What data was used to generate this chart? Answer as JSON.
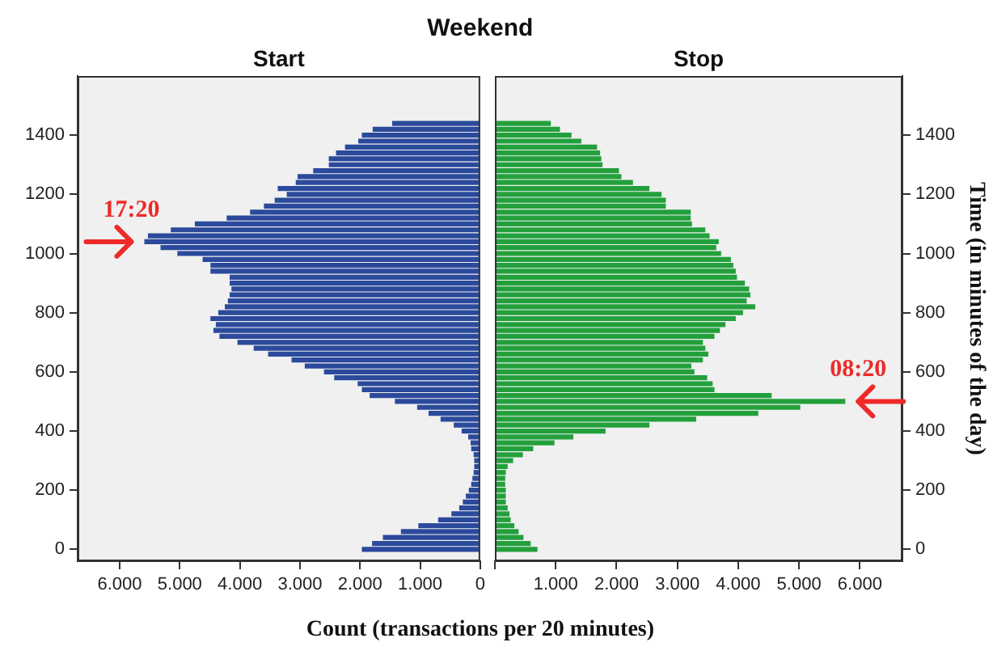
{
  "chart_data": [
    {
      "type": "bar",
      "orientation": "horizontal",
      "title": "Weekend",
      "subtitle": "Start",
      "xlabel": "Count (transactions per 20 minutes)",
      "x": [
        0,
        20,
        40,
        60,
        80,
        100,
        120,
        140,
        160,
        180,
        200,
        220,
        240,
        260,
        280,
        300,
        320,
        340,
        360,
        380,
        400,
        420,
        440,
        460,
        480,
        500,
        520,
        540,
        560,
        580,
        600,
        620,
        640,
        660,
        680,
        700,
        720,
        740,
        760,
        780,
        800,
        820,
        840,
        860,
        880,
        900,
        920,
        940,
        960,
        980,
        1000,
        1020,
        1040,
        1060,
        1080,
        1100,
        1120,
        1140,
        1160,
        1180,
        1200,
        1220,
        1240,
        1260,
        1280,
        1300,
        1320,
        1340,
        1360,
        1380,
        1400,
        1420,
        1440
      ],
      "series": [
        {
          "color": "#2b4a9c",
          "values": [
            1970,
            1800,
            1620,
            1320,
            1030,
            700,
            480,
            350,
            290,
            240,
            190,
            150,
            130,
            110,
            100,
            100,
            110,
            150,
            160,
            200,
            310,
            440,
            660,
            860,
            1050,
            1420,
            1840,
            1970,
            2040,
            2430,
            2600,
            2920,
            3140,
            3530,
            3770,
            4040,
            4340,
            4440,
            4400,
            4490,
            4360,
            4250,
            4200,
            4170,
            4140,
            4170,
            4170,
            4490,
            4490,
            4620,
            5040,
            5320,
            5590,
            5530,
            5150,
            4750,
            4220,
            3830,
            3600,
            3420,
            3220,
            3370,
            3070,
            3040,
            2780,
            2520,
            2520,
            2400,
            2250,
            2030,
            1970,
            1790,
            1465
          ]
        }
      ],
      "xlim": [
        6700,
        0
      ],
      "xticks": [
        {
          "value": 6000,
          "label": "6.000"
        },
        {
          "value": 5000,
          "label": "5.000"
        },
        {
          "value": 4000,
          "label": "4.000"
        },
        {
          "value": 3000,
          "label": "3.000"
        },
        {
          "value": 2000,
          "label": "2.000"
        },
        {
          "value": 1000,
          "label": "1.000"
        },
        0
      ],
      "ylim": [
        -40,
        1600
      ],
      "yticks": [
        0,
        200,
        400,
        600,
        800,
        1000,
        1200,
        1400
      ],
      "grid": false,
      "legend": false,
      "annotations": [
        {
          "text": "17:20",
          "x": 5590,
          "y": 1040
        }
      ]
    },
    {
      "type": "bar",
      "orientation": "horizontal",
      "subtitle": "Stop",
      "ylabel": "Time (in minutes of the day)",
      "x": [
        0,
        20,
        40,
        60,
        80,
        100,
        120,
        140,
        160,
        180,
        200,
        220,
        240,
        260,
        280,
        300,
        320,
        340,
        360,
        380,
        400,
        420,
        440,
        460,
        480,
        500,
        520,
        540,
        560,
        580,
        600,
        620,
        640,
        660,
        680,
        700,
        720,
        740,
        760,
        780,
        800,
        820,
        840,
        860,
        880,
        900,
        920,
        940,
        960,
        980,
        1000,
        1020,
        1040,
        1060,
        1080,
        1100,
        1120,
        1140,
        1160,
        1180,
        1200,
        1220,
        1240,
        1260,
        1280,
        1300,
        1320,
        1340,
        1360,
        1380,
        1400,
        1420,
        1440
      ],
      "series": [
        {
          "color": "#23a03c",
          "values": [
            700,
            590,
            470,
            390,
            320,
            260,
            240,
            210,
            180,
            180,
            180,
            170,
            170,
            180,
            210,
            300,
            460,
            630,
            980,
            1290,
            1820,
            2540,
            3310,
            4330,
            5020,
            5760,
            4550,
            3610,
            3580,
            3490,
            3280,
            3230,
            3420,
            3510,
            3460,
            3420,
            3610,
            3700,
            3790,
            3960,
            4080,
            4280,
            4140,
            4200,
            4180,
            4110,
            3980,
            3960,
            3920,
            3880,
            3720,
            3640,
            3680,
            3530,
            3460,
            3240,
            3220,
            3220,
            2810,
            2810,
            2740,
            2540,
            2270,
            2080,
            2040,
            1770,
            1750,
            1730,
            1680,
            1420,
            1260,
            1070,
            920
          ]
        }
      ],
      "xlim": [
        0,
        6700
      ],
      "xticks": [
        {
          "value": 0,
          "label": null
        },
        {
          "value": 1000,
          "label": "1.000"
        },
        {
          "value": 2000,
          "label": "2.000"
        },
        {
          "value": 3000,
          "label": "3.000"
        },
        {
          "value": 4000,
          "label": "4.000"
        },
        {
          "value": 5000,
          "label": "5.000"
        },
        {
          "value": 6000,
          "label": "6.000"
        }
      ],
      "ylim": [
        -40,
        1600
      ],
      "yticks": [
        0,
        200,
        400,
        600,
        800,
        1000,
        1200,
        1400
      ],
      "grid": false,
      "legend": false,
      "annotations": [
        {
          "text": "08:20",
          "x": 5760,
          "y": 500
        }
      ]
    }
  ]
}
